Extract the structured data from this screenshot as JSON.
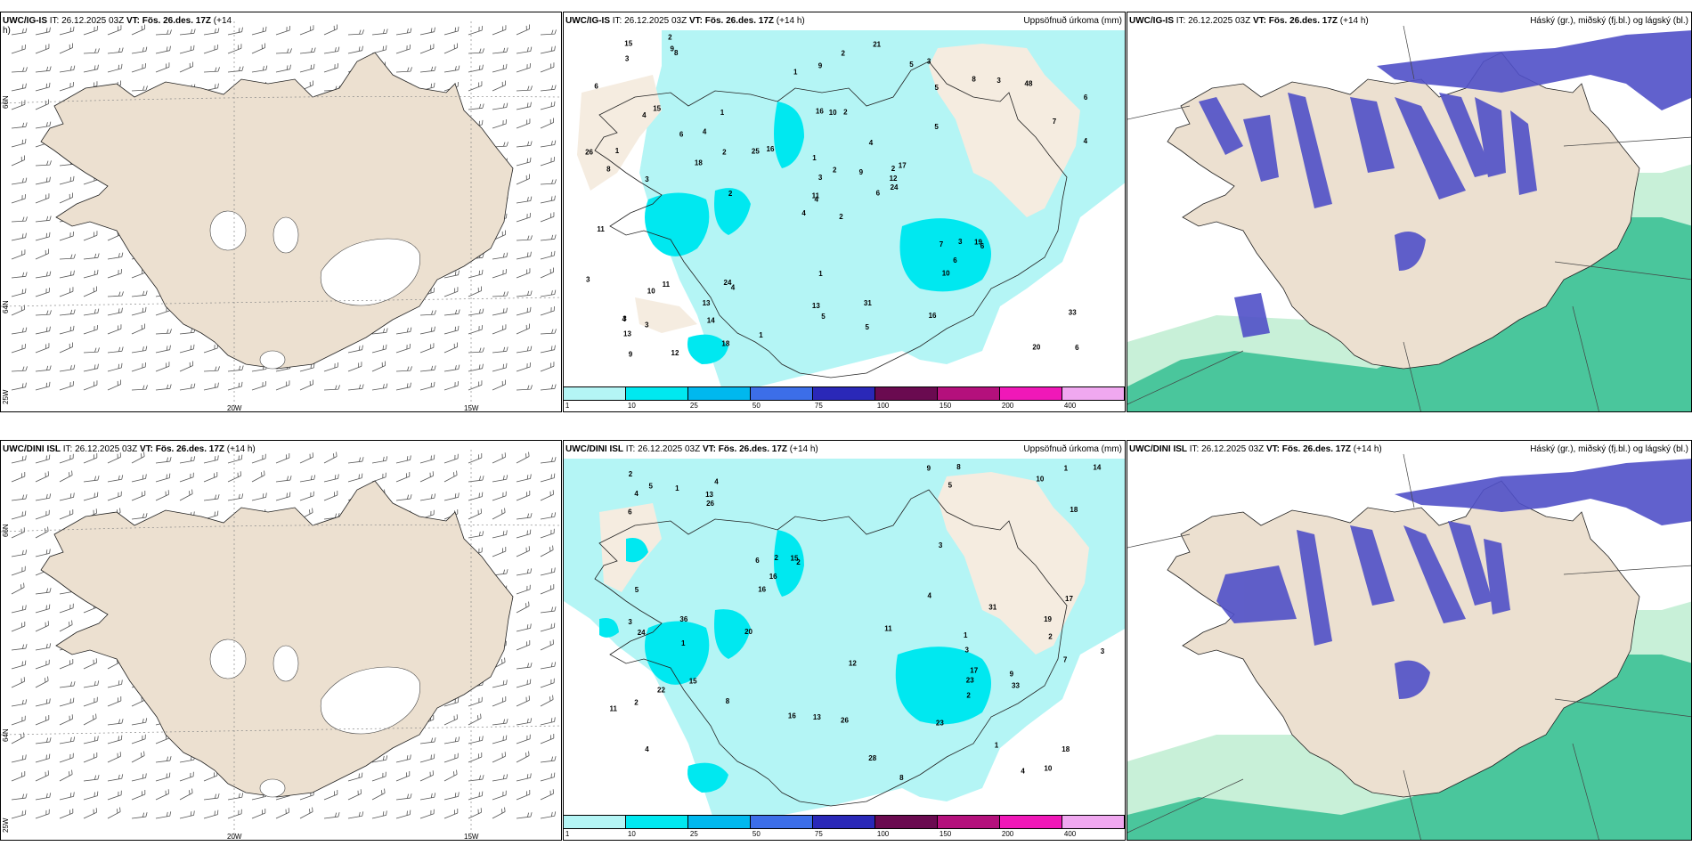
{
  "panels": {
    "top_wind": {
      "model": "UWC/IG-IS",
      "it_label": "IT: 26.12.2025 03Z",
      "vt_label": "VT: Fös. 26.des. 17Z",
      "lead": "(+14",
      "lead2": "h)"
    },
    "top_precip": {
      "model": "UWC/IG-IS",
      "it_label": "IT: 26.12.2025 03Z",
      "vt_label": "VT: Fös. 26.des. 17Z",
      "lead": "(+14 h)",
      "field": "Uppsöfnuð úrkoma (mm)"
    },
    "top_cloud": {
      "model": "UWC/IG-IS",
      "it_label": "IT: 26.12.2025 03Z",
      "vt_label": "VT: Fös. 26.des. 17Z",
      "lead": "(+14 h)",
      "field": "Háský (gr.), miðský (fj.bl.) og lágský (bl.)"
    },
    "bottom_wind": {
      "model": "UWC/DINI ISL",
      "it_label": "IT: 26.12.2025 03Z",
      "vt_label": "VT: Fös. 26.des. 17Z",
      "lead": "(+14 h)"
    },
    "bottom_precip": {
      "model": "UWC/DINI ISL",
      "it_label": "IT: 26.12.2025 03Z",
      "vt_label": "VT: Fös. 26.des. 17Z",
      "lead": "(+14 h)",
      "field": "Uppsöfnuð úrkoma (mm)"
    },
    "bottom_cloud": {
      "model": "UWC/DINI ISL",
      "it_label": "IT: 26.12.2025 03Z",
      "vt_label": "VT: Fös. 26.des. 17Z",
      "lead": "(+14 h)",
      "field": "Háský (gr.), miðský (fj.bl.) og lágský (bl.)"
    }
  },
  "axes": {
    "lon1": "20W",
    "lon2": "15W",
    "lat_top": "66N",
    "lat_mid": "64N",
    "lat_bot": "25W"
  },
  "colorbar": {
    "labels": [
      "1",
      "10",
      "25",
      "50",
      "75",
      "100",
      "150",
      "200",
      "400"
    ],
    "colors": [
      "#b4f5f5",
      "#00e8f0",
      "#00b8ee",
      "#3c6ee8",
      "#2a28b8",
      "#6a0a50",
      "#b4107c",
      "#f018b8",
      "#f0a8f0"
    ]
  },
  "precip_top_values": [
    "2",
    "4",
    "4",
    "3",
    "2",
    "4",
    "3",
    "2",
    "5",
    "6",
    "8",
    "6",
    "3",
    "6",
    "4",
    "5",
    "12",
    "16",
    "4",
    "11",
    "16",
    "13",
    "14",
    "10",
    "17",
    "6",
    "15",
    "9",
    "8",
    "7",
    "4",
    "11",
    "13",
    "3",
    "1",
    "8",
    "24",
    "20",
    "33",
    "19",
    "21",
    "25",
    "18",
    "10",
    "18",
    "26",
    "12",
    "9",
    "5",
    "24",
    "10",
    "7",
    "6",
    "6",
    "16",
    "13",
    "9",
    "15",
    "31",
    "48",
    "2",
    "2",
    "1",
    "4",
    "3",
    "2",
    "5",
    "1",
    "2",
    "3",
    "1",
    "1",
    "3",
    "2",
    "4",
    "3",
    "6",
    "11",
    "1",
    "5",
    "9",
    "3"
  ],
  "precip_bottom_values": [
    "3",
    "2",
    "4",
    "4",
    "2",
    "1",
    "2",
    "5",
    "6",
    "8",
    "6",
    "3",
    "4",
    "18",
    "16",
    "17",
    "12",
    "11",
    "15",
    "15",
    "14",
    "10",
    "16",
    "7",
    "9",
    "13",
    "17",
    "24",
    "26",
    "31",
    "28",
    "23",
    "16",
    "20",
    "19",
    "33",
    "23",
    "36",
    "26",
    "22",
    "18",
    "8",
    "10",
    "13",
    "9",
    "8",
    "11",
    "5",
    "4",
    "5",
    "3",
    "2",
    "1",
    "1",
    "2",
    "4",
    "3",
    "2",
    "1",
    "1"
  ],
  "colors": {
    "land": "#ece0d0",
    "precip_light": "#b4f5f5",
    "precip_cyan": "#00e8f0",
    "cloud_high": "#5050c8",
    "cloud_low": "#20b888",
    "cloud_mid": "#a0e0b8"
  }
}
